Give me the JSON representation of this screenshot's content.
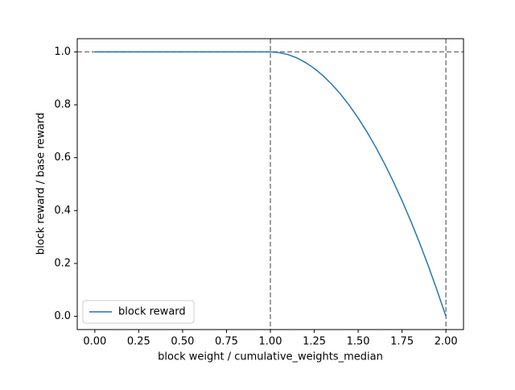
{
  "chart_data": {
    "type": "line",
    "xlabel": "block weight / cumulative_weights_median",
    "ylabel": "block reward / base reward",
    "x": [
      0,
      0.5,
      1.0,
      1.05,
      1.1,
      1.15,
      1.2,
      1.25,
      1.3,
      1.35,
      1.4,
      1.45,
      1.5,
      1.55,
      1.6,
      1.65,
      1.7,
      1.75,
      1.8,
      1.85,
      1.9,
      1.95,
      2.0
    ],
    "series": [
      {
        "name": "block reward",
        "color": "#1f77b4",
        "values": [
          1,
          1,
          1,
          0.9975,
          0.99,
          0.9775,
          0.96,
          0.9375,
          0.91,
          0.8775,
          0.84,
          0.7975,
          0.75,
          0.6975,
          0.64,
          0.5775,
          0.51,
          0.4375,
          0.36,
          0.2775,
          0.19,
          0.0975,
          0
        ]
      }
    ],
    "reference_lines": {
      "x": [
        1,
        2
      ],
      "y": [
        1
      ],
      "color": "#7f7f7f"
    },
    "xlim": [
      -0.1,
      2.1
    ],
    "ylim": [
      -0.05,
      1.05
    ],
    "xticks": [
      {
        "value": 0,
        "label": "0.00"
      },
      {
        "value": 0.25,
        "label": "0.25"
      },
      {
        "value": 0.5,
        "label": "0.50"
      },
      {
        "value": 0.75,
        "label": "0.75"
      },
      {
        "value": 1,
        "label": "1.00"
      },
      {
        "value": 1.25,
        "label": "1.25"
      },
      {
        "value": 1.5,
        "label": "1.50"
      },
      {
        "value": 1.75,
        "label": "1.75"
      },
      {
        "value": 2,
        "label": "2.00"
      }
    ],
    "yticks": [
      {
        "value": 0,
        "label": "0.0"
      },
      {
        "value": 0.2,
        "label": "0.2"
      },
      {
        "value": 0.4,
        "label": "0.4"
      },
      {
        "value": 0.6,
        "label": "0.6"
      },
      {
        "value": 0.8,
        "label": "0.8"
      },
      {
        "value": 1,
        "label": "1.0"
      }
    ],
    "legend": "lower left"
  }
}
